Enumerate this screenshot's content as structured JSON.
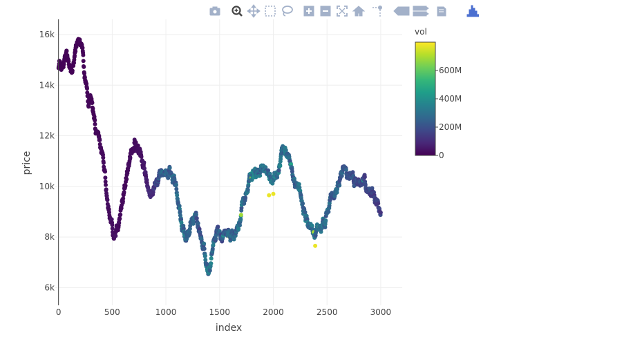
{
  "modebar": {
    "buttons": [
      {
        "name": "camera-icon",
        "title": "Download plot as a png"
      },
      {
        "name": "zoom-icon",
        "title": "Zoom"
      },
      {
        "name": "pan-icon",
        "title": "Pan"
      },
      {
        "name": "box-select-icon",
        "title": "Box Select"
      },
      {
        "name": "lasso-select-icon",
        "title": "Lasso Select"
      },
      {
        "name": "zoom-in-icon",
        "title": "Zoom in"
      },
      {
        "name": "zoom-out-icon",
        "title": "Zoom out"
      },
      {
        "name": "autoscale-icon",
        "title": "Autoscale"
      },
      {
        "name": "reset-axes-icon",
        "title": "Reset axes"
      },
      {
        "name": "spike-lines-icon",
        "title": "Toggle Spike Lines"
      },
      {
        "name": "hover-closest-icon",
        "title": "Show closest data on hover"
      },
      {
        "name": "hover-compare-icon",
        "title": "Compare data on hover"
      },
      {
        "name": "edit-chart-icon",
        "title": "Edit in Chart Studio"
      },
      {
        "name": "plotly-logo-icon",
        "title": "Produced with Plotly"
      }
    ],
    "active_color": "#444444",
    "inactive_color": "#a3b1c9",
    "logo_color": "#3f4f75"
  },
  "chart_data": {
    "type": "scatter",
    "title": "",
    "xlabel": "index",
    "ylabel": "price",
    "xlim": [
      -30,
      3200
    ],
    "ylim": [
      5300,
      16600
    ],
    "xticks": [
      0,
      500,
      1000,
      1500,
      2000,
      2500,
      3000
    ],
    "xtick_labels": [
      "0",
      "500",
      "1000",
      "1500",
      "2000",
      "2500",
      "3000"
    ],
    "yticks": [
      6000,
      8000,
      10000,
      12000,
      14000,
      16000
    ],
    "ytick_labels": [
      "6k",
      "8k",
      "10k",
      "12k",
      "14k",
      "16k"
    ],
    "grid": true,
    "marker_color_variable": "vol",
    "colorscale": "Viridis",
    "colorscale_stops": [
      "#440154",
      "#482878",
      "#3e4989",
      "#31688e",
      "#26828e",
      "#1f9e89",
      "#35b779",
      "#6ece58",
      "#b5de2b",
      "#fde725"
    ],
    "colorbar": {
      "title": "vol",
      "range": [
        0,
        800000000
      ],
      "ticks": [
        0,
        200000000,
        400000000,
        600000000
      ],
      "tick_labels": [
        "0",
        "200M",
        "400M",
        "600M"
      ]
    },
    "price_path": {
      "x": [
        0,
        40,
        70,
        100,
        130,
        160,
        180,
        200,
        220,
        240,
        260,
        280,
        300,
        330,
        350,
        370,
        390,
        410,
        430,
        450,
        470,
        490,
        510,
        530,
        560,
        600,
        640,
        680,
        720,
        740,
        760,
        800,
        830,
        860,
        900,
        950,
        1000,
        1040,
        1080,
        1120,
        1150,
        1180,
        1220,
        1260,
        1300,
        1330,
        1360,
        1380,
        1400,
        1430,
        1460,
        1500,
        1530,
        1560,
        1600,
        1650,
        1700,
        1750,
        1800,
        1850,
        1900,
        1950,
        2000,
        2050,
        2100,
        2150,
        2200,
        2250,
        2300,
        2340,
        2380,
        2420,
        2460,
        2500,
        2550,
        2600,
        2650,
        2700,
        2750,
        2800,
        2850,
        2900,
        2950,
        2980,
        3000
      ],
      "y": [
        14800,
        14900,
        15100,
        14900,
        14600,
        15400,
        15800,
        15800,
        15500,
        14600,
        13800,
        13200,
        13400,
        12700,
        12000,
        11700,
        11400,
        11000,
        10400,
        9600,
        9000,
        8700,
        8300,
        7900,
        8600,
        9500,
        10600,
        11400,
        12000,
        11800,
        11300,
        10500,
        10100,
        9600,
        10200,
        10400,
        10600,
        10500,
        10100,
        9400,
        8600,
        8200,
        8400,
        8700,
        8500,
        8000,
        7300,
        6800,
        6400,
        7400,
        7900,
        8100,
        8000,
        8200,
        8000,
        8300,
        9100,
        9800,
        10300,
        10700,
        10600,
        10400,
        10200,
        10800,
        11500,
        11200,
        10400,
        9800,
        8700,
        8300,
        8200,
        8400,
        8600,
        9000,
        9500,
        10200,
        10800,
        10500,
        10200,
        10100,
        10000,
        9800,
        9500,
        9100,
        8900
      ],
      "vol": [
        5000000,
        8000000,
        6000000,
        5000000,
        7000000,
        6000000,
        5000000,
        9000000,
        8000000,
        10000000,
        12000000,
        15000000,
        10000000,
        12000000,
        15000000,
        18000000,
        20000000,
        22000000,
        25000000,
        28000000,
        25000000,
        30000000,
        28000000,
        32000000,
        25000000,
        20000000,
        22000000,
        25000000,
        30000000,
        30000000,
        35000000,
        50000000,
        80000000,
        100000000,
        150000000,
        220000000,
        260000000,
        240000000,
        230000000,
        260000000,
        300000000,
        290000000,
        270000000,
        250000000,
        200000000,
        230000000,
        260000000,
        300000000,
        340000000,
        280000000,
        240000000,
        230000000,
        220000000,
        230000000,
        250000000,
        260000000,
        280000000,
        300000000,
        320000000,
        300000000,
        280000000,
        300000000,
        320000000,
        300000000,
        280000000,
        260000000,
        240000000,
        280000000,
        300000000,
        290000000,
        280000000,
        290000000,
        270000000,
        260000000,
        250000000,
        240000000,
        220000000,
        200000000,
        190000000,
        180000000,
        170000000,
        160000000,
        160000000,
        150000000,
        150000000
      ]
    }
  }
}
